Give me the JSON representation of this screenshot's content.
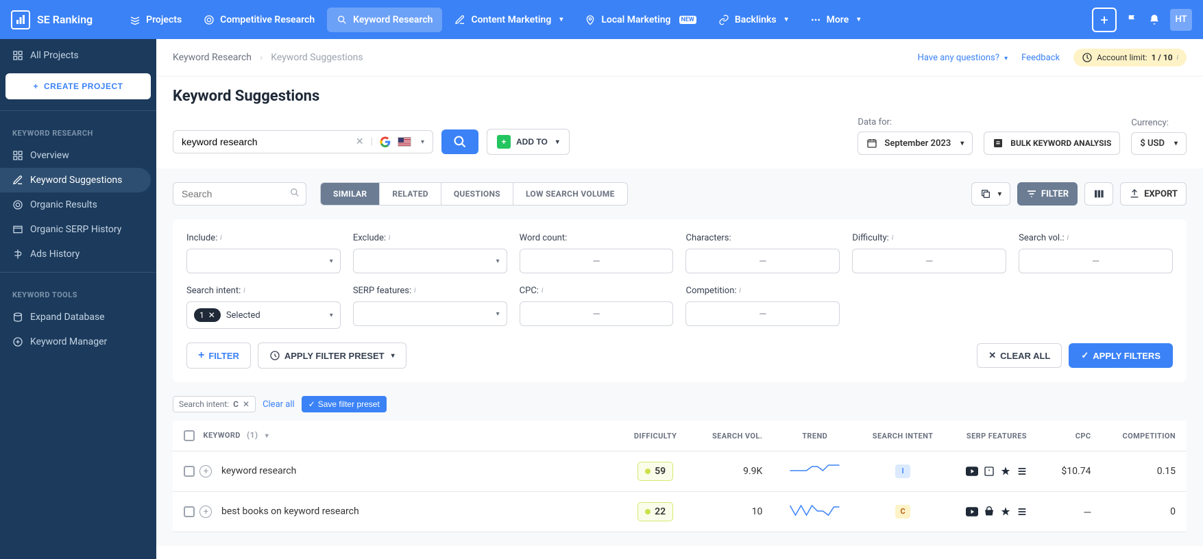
{
  "brand": "SE Ranking",
  "topnav": {
    "items": [
      {
        "label": "Projects"
      },
      {
        "label": "Competitive Research"
      },
      {
        "label": "Keyword Research",
        "active": true
      },
      {
        "label": "Content Marketing",
        "chev": true
      },
      {
        "label": "Local Marketing",
        "badge": "NEW"
      },
      {
        "label": "Backlinks",
        "chev": true
      },
      {
        "label": "More",
        "chev": true
      }
    ],
    "avatar": "HT"
  },
  "sidebar": {
    "all_projects": "All Projects",
    "create_project": "CREATE PROJECT",
    "sections": [
      {
        "header": "KEYWORD RESEARCH",
        "items": [
          {
            "label": "Overview"
          },
          {
            "label": "Keyword Suggestions",
            "active": true
          },
          {
            "label": "Organic Results"
          },
          {
            "label": "Organic SERP History"
          },
          {
            "label": "Ads History"
          }
        ]
      },
      {
        "header": "KEYWORD TOOLS",
        "items": [
          {
            "label": "Expand Database"
          },
          {
            "label": "Keyword Manager"
          }
        ]
      }
    ]
  },
  "breadcrumb": {
    "parent": "Keyword Research",
    "current": "Keyword Suggestions"
  },
  "actions": {
    "questions": "Have any questions?",
    "feedback": "Feedback",
    "account_limit_label": "Account limit:",
    "account_limit_value": "1 / 10"
  },
  "page_title": "Keyword Suggestions",
  "search": {
    "value": "keyword research",
    "add_to": "ADD TO"
  },
  "data_for": {
    "label": "Data for:",
    "value": "September 2023"
  },
  "bulk": "BULK KEYWORD ANALYSIS",
  "currency": {
    "label": "Currency:",
    "value": "$ USD"
  },
  "toolbar": {
    "search_placeholder": "Search",
    "segments": [
      "SIMILAR",
      "RELATED",
      "QUESTIONS",
      "LOW SEARCH VOLUME"
    ],
    "filter": "FILTER",
    "export": "EXPORT"
  },
  "filters": {
    "include": "Include:",
    "exclude": "Exclude:",
    "word_count": "Word count:",
    "characters": "Characters:",
    "difficulty": "Difficulty:",
    "search_vol": "Search vol.:",
    "search_intent": "Search intent:",
    "serp_features": "SERP features:",
    "cpc": "CPC:",
    "competition": "Competition:",
    "intent_count": "1",
    "intent_selected": "Selected",
    "filter_btn": "FILTER",
    "apply_preset": "APPLY FILTER PRESET",
    "clear_all": "CLEAR ALL",
    "apply_filters": "APPLY FILTERS"
  },
  "applied": {
    "chip_label": "Search intent:",
    "chip_value": "C",
    "clear": "Clear all",
    "save": "Save filter preset"
  },
  "table": {
    "headers": {
      "keyword": "KEYWORD",
      "keyword_count": "(1)",
      "difficulty": "DIFFICULTY",
      "search_vol": "SEARCH VOL.",
      "trend": "TREND",
      "search_intent": "SEARCH INTENT",
      "serp_features": "SERP FEATURES",
      "cpc": "CPC",
      "competition": "COMPETITION"
    },
    "rows": [
      {
        "keyword": "keyword research",
        "difficulty": "59",
        "search_vol": "9.9K",
        "intent": "I",
        "cpc": "$10.74",
        "competition": "0.15",
        "trend": [
          14,
          14,
          14,
          14,
          8,
          8,
          14,
          6,
          6,
          6
        ]
      },
      {
        "keyword": "best books on keyword research",
        "difficulty": "22",
        "search_vol": "10",
        "intent": "C",
        "cpc": "─",
        "competition": "0",
        "trend": [
          6,
          20,
          6,
          20,
          6,
          14,
          14,
          20,
          8,
          8
        ]
      }
    ]
  }
}
